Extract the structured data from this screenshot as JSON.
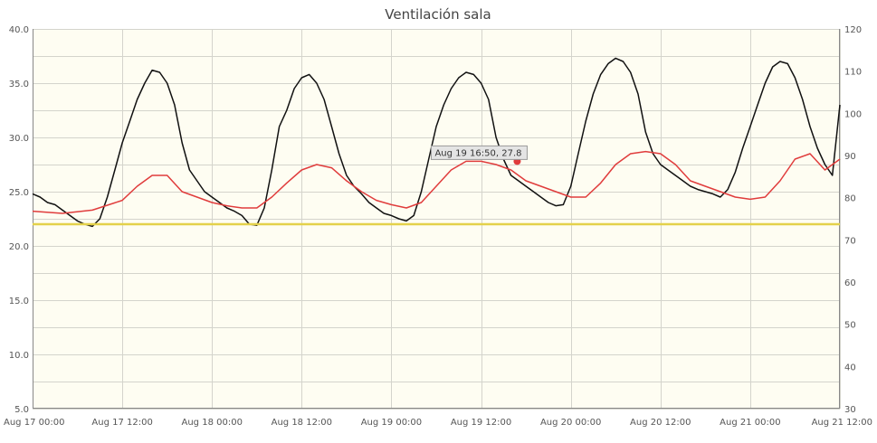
{
  "chart_data": {
    "type": "line",
    "title": "Ventilación sala",
    "x_tick_labels": [
      "Aug 17 00:00",
      "Aug 17 12:00",
      "Aug 18 00:00",
      "Aug 18 12:00",
      "Aug 19 00:00",
      "Aug 19 12:00",
      "Aug 20 00:00",
      "Aug 20 12:00",
      "Aug 21 00:00",
      "Aug 21 12:00"
    ],
    "x_range_hours": [
      0,
      108
    ],
    "y_left": {
      "min": 5.0,
      "max": 40.0,
      "ticks": [
        "5.0",
        "10.0",
        "15.0",
        "20.0",
        "25.0",
        "30.0",
        "35.0",
        "40.0"
      ]
    },
    "y_right": {
      "min": 30,
      "max": 120,
      "ticks": [
        "30",
        "40",
        "50",
        "60",
        "70",
        "80",
        "90",
        "100",
        "110",
        "120"
      ]
    },
    "grid": true,
    "colors": {
      "plot_bg": "#fefdf2",
      "black_series": "#111111",
      "red_series": "#e03c3c",
      "yellow_series": "#e3d14a"
    },
    "series": [
      {
        "color": "#111111",
        "axis": "left",
        "x_hours": [
          0,
          1,
          2,
          3,
          4,
          5,
          6,
          7,
          8,
          9,
          10,
          11,
          12,
          13,
          14,
          15,
          16,
          17,
          18,
          19,
          20,
          21,
          22,
          23,
          24,
          25,
          26,
          27,
          28,
          29,
          30,
          31,
          32,
          33,
          34,
          35,
          36,
          37,
          38,
          39,
          40,
          41,
          42,
          43,
          44,
          45,
          46,
          47,
          48,
          49,
          50,
          51,
          52,
          53,
          54,
          55,
          56,
          57,
          58,
          59,
          60,
          61,
          62,
          63,
          64,
          65,
          66,
          67,
          68,
          69,
          70,
          71,
          72,
          73,
          74,
          75,
          76,
          77,
          78,
          79,
          80,
          81,
          82,
          83,
          84,
          85,
          86,
          87,
          88,
          89,
          90,
          91,
          92,
          93,
          94,
          95,
          96,
          97,
          98,
          99,
          100,
          101,
          102,
          103,
          104,
          105,
          106,
          107,
          108
        ],
        "values": [
          24.8,
          24.5,
          24.0,
          23.8,
          23.3,
          22.8,
          22.3,
          22.0,
          21.8,
          22.5,
          24.5,
          27.0,
          29.5,
          31.5,
          33.5,
          35.0,
          36.2,
          36.0,
          35.0,
          33.0,
          29.5,
          27.0,
          26.0,
          25.0,
          24.5,
          24.0,
          23.5,
          23.2,
          22.8,
          22.0,
          21.9,
          23.5,
          27.0,
          31.0,
          32.5,
          34.5,
          35.5,
          35.8,
          35.0,
          33.5,
          31.0,
          28.5,
          26.5,
          25.5,
          24.8,
          24.0,
          23.5,
          23.0,
          22.8,
          22.5,
          22.3,
          22.8,
          25.0,
          28.0,
          31.0,
          33.0,
          34.5,
          35.5,
          36.0,
          35.8,
          35.0,
          33.5,
          30.0,
          28.0,
          26.5,
          26.0,
          25.5,
          25.0,
          24.5,
          24.0,
          23.7,
          23.8,
          25.5,
          28.5,
          31.5,
          34.0,
          35.8,
          36.8,
          37.3,
          37.0,
          36.0,
          34.0,
          30.5,
          28.5,
          27.5,
          27.0,
          26.5,
          26.0,
          25.5,
          25.2,
          25.0,
          24.8,
          24.5,
          25.2,
          26.8,
          29.0,
          31.0,
          33.0,
          35.0,
          36.5,
          37.0,
          36.8,
          35.5,
          33.5,
          31.0,
          29.0,
          27.5,
          26.5,
          33.0
        ]
      },
      {
        "color": "#e03c3c",
        "axis": "left",
        "x_hours": [
          0,
          4,
          8,
          12,
          14,
          16,
          18,
          20,
          22,
          24,
          26,
          28,
          30,
          32,
          34,
          36,
          38,
          40,
          42,
          44,
          46,
          48,
          50,
          52,
          54,
          56,
          58,
          60,
          62,
          64,
          66,
          68,
          70,
          72,
          74,
          76,
          78,
          80,
          82,
          84,
          86,
          88,
          90,
          92,
          94,
          96,
          98,
          100,
          102,
          104,
          106,
          108
        ],
        "values": [
          23.2,
          23.0,
          23.3,
          24.2,
          25.5,
          26.5,
          26.5,
          25.0,
          24.5,
          24.0,
          23.7,
          23.5,
          23.5,
          24.5,
          25.8,
          27.0,
          27.5,
          27.2,
          26.0,
          25.0,
          24.2,
          23.8,
          23.5,
          24.0,
          25.5,
          27.0,
          27.8,
          27.8,
          27.5,
          27.0,
          26.0,
          25.5,
          25.0,
          24.5,
          24.5,
          25.8,
          27.5,
          28.5,
          28.7,
          28.5,
          27.5,
          26.0,
          25.5,
          25.0,
          24.5,
          24.3,
          24.5,
          26.0,
          28.0,
          28.5,
          27.0,
          28.0
        ]
      },
      {
        "color": "#e3d14a",
        "axis": "left",
        "x_hours": [
          0,
          108
        ],
        "values": [
          22.0,
          22.0
        ]
      }
    ],
    "annotation": {
      "text": "Aug 19 16:50, 27.8",
      "x_hour": 64.83,
      "y": 27.8
    }
  }
}
